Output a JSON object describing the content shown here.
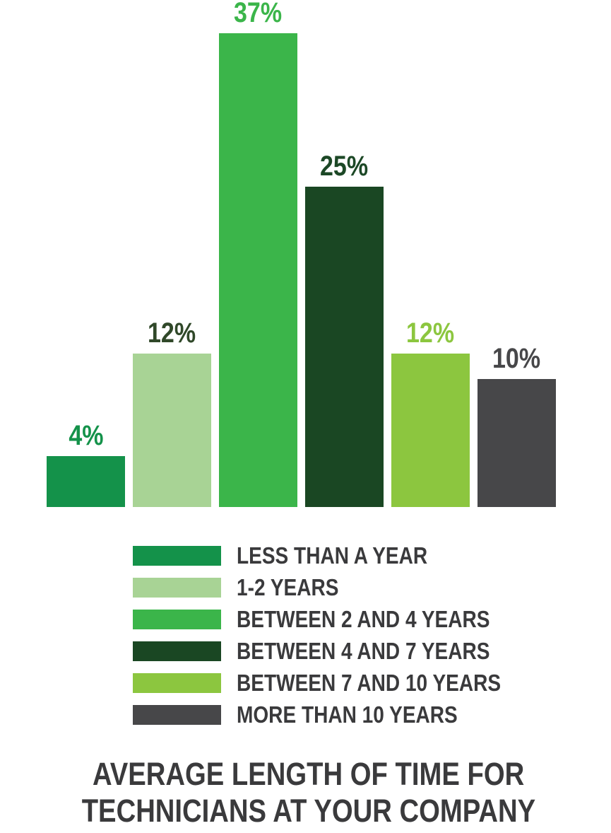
{
  "chart_data": {
    "type": "bar",
    "title": "Average Length of Time for Technicians at Your Company",
    "xlabel": "",
    "ylabel": "",
    "ylim": [
      0,
      40
    ],
    "grid": false,
    "axes_shown": false,
    "legend_position": "below",
    "categories": [
      "Less than a year",
      "1-2 years",
      "Between 2 and 4 years",
      "Between 4 and 7 years",
      "Between 7 and 10 years",
      "More than 10 years"
    ],
    "values": [
      4,
      12,
      37,
      25,
      12,
      10
    ],
    "value_labels": [
      "4%",
      "12%",
      "37%",
      "25%",
      "12%",
      "10%"
    ],
    "bar_colors": [
      "#14924A",
      "#A8D395",
      "#3BB54A",
      "#1A4723",
      "#8CC63F",
      "#474749"
    ],
    "value_label_colors": [
      "#14924A",
      "#304829",
      "#3BB54A",
      "#1C4826",
      "#8CC63F",
      "#474749"
    ]
  },
  "legend": {
    "items": [
      {
        "label": "LESS THAN A YEAR",
        "color": "#14924A"
      },
      {
        "label": "1-2 YEARS",
        "color": "#A8D395"
      },
      {
        "label": "BETWEEN 2 AND 4 YEARS",
        "color": "#3BB54A"
      },
      {
        "label": "BETWEEN 4 AND 7 YEARS",
        "color": "#1A4723"
      },
      {
        "label": "BETWEEN 7 AND 10 YEARS",
        "color": "#8CC63F"
      },
      {
        "label": "MORE THAN 10 YEARS",
        "color": "#474749"
      }
    ],
    "text_color": "#3a3a3c"
  },
  "title": {
    "line1": "AVERAGE LENGTH OF TIME FOR",
    "line2": "TECHNICIANS AT YOUR COMPANY",
    "color": "#3a3a3c"
  }
}
